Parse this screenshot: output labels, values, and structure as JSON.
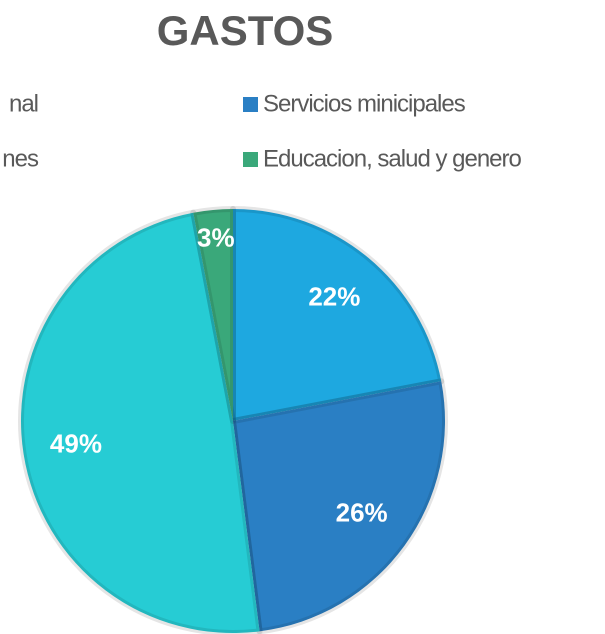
{
  "chart_data": {
    "type": "pie",
    "title": "GASTOS",
    "categories": [
      "nal",
      "Servicios minicipales",
      "nes",
      "Educacion, salud y genero"
    ],
    "values": [
      22,
      26,
      49,
      3
    ],
    "value_labels": [
      "22%",
      "26%",
      "49%",
      "3%"
    ],
    "colors": [
      "#1ea8e0",
      "#2a7fc4",
      "#26ccd4",
      "#3aa87a"
    ]
  }
}
